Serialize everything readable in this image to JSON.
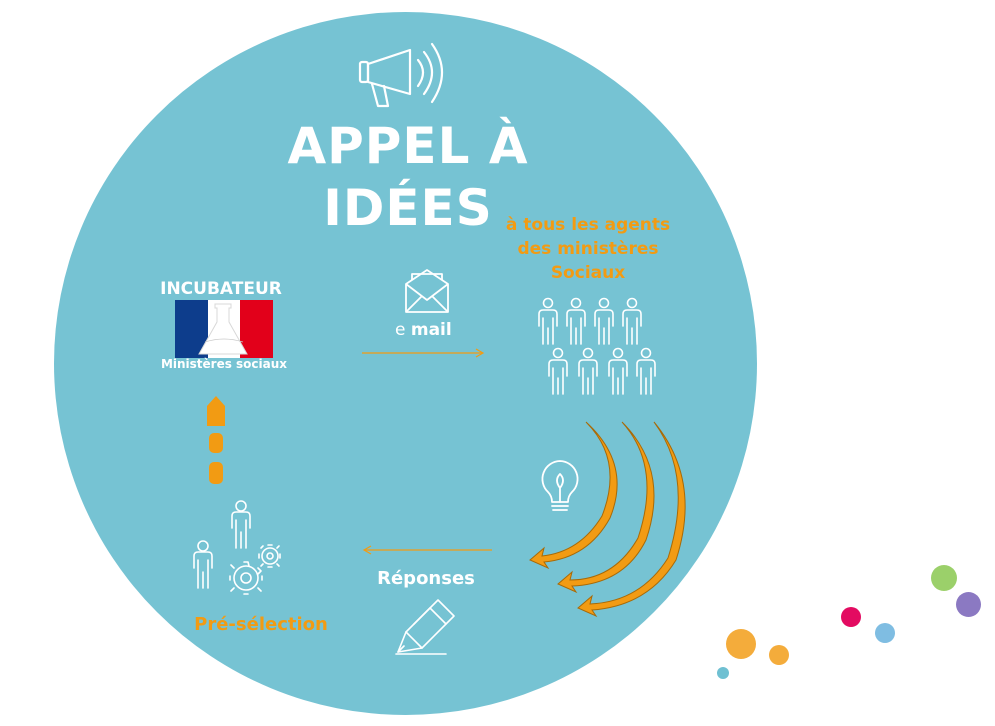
{
  "title_line1": "APPEL À",
  "title_line2": "IDÉES",
  "audience": {
    "line1": "à tous les agents",
    "line2": "des ministères",
    "line3": "Sociaux"
  },
  "incubator": {
    "heading": "INCUBATEUR",
    "caption": "Ministères sociaux"
  },
  "email": {
    "prefix": "e ",
    "bold": "mail"
  },
  "responses_label": "Réponses",
  "preselection_label": "Pré-sélection",
  "colors": {
    "circle": "#76c3d3",
    "accent_orange": "#f29b13",
    "text_white": "#ffffff",
    "flag_blue": "#0d3d8c",
    "flag_red": "#e2001a",
    "dot_colors": [
      "#f4ac3b",
      "#f4ac3b",
      "#6fc0d2",
      "#e30b61",
      "#7fbde2",
      "#9bd06a",
      "#8b79c2"
    ]
  },
  "icons": [
    "megaphone-icon",
    "envelope-icon",
    "people-group-icon",
    "lightbulb-icon",
    "curved-arrows-icon",
    "pencil-icon",
    "gears-people-icon",
    "dashed-up-arrow-icon"
  ]
}
